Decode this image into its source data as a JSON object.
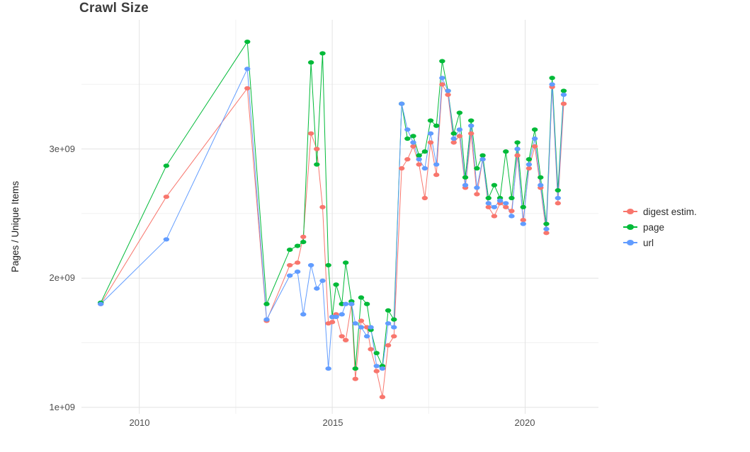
{
  "title": "Crawl Size",
  "y_axis_title": "Pages / Unique Items",
  "legend": {
    "position": "right",
    "items": [
      {
        "label": "digest estim.",
        "color": "#F8766D"
      },
      {
        "label": "page",
        "color": "#00BA38"
      },
      {
        "label": "url",
        "color": "#619CFF"
      }
    ]
  },
  "chart_data": {
    "type": "line",
    "title": "Crawl Size",
    "xlabel": "",
    "ylabel": "Pages / Unique Items",
    "y_unit_multiplier": 1000000000.0,
    "xlim": [
      2008.5,
      2021.9
    ],
    "ylim": [
      0.95,
      4.0
    ],
    "grid": true,
    "legend_position": "right",
    "x_ticks": [
      {
        "value": 2010,
        "label": "2010"
      },
      {
        "value": 2015,
        "label": "2015"
      },
      {
        "value": 2020,
        "label": "2020"
      }
    ],
    "y_ticks": [
      {
        "value": 1,
        "label": "1e+09"
      },
      {
        "value": 2,
        "label": "2e+09"
      },
      {
        "value": 3,
        "label": "3e+09"
      }
    ],
    "x_minor_gridlines": [
      2012.5,
      2017.5
    ],
    "y_minor_gridlines": [
      1.5,
      2.5,
      3.5
    ],
    "x": [
      2009.0,
      2010.7,
      2012.8,
      2013.3,
      2013.9,
      2014.1,
      2014.25,
      2014.45,
      2014.6,
      2014.75,
      2014.9,
      2015.0,
      2015.1,
      2015.25,
      2015.35,
      2015.5,
      2015.6,
      2015.75,
      2015.9,
      2016.0,
      2016.15,
      2016.3,
      2016.45,
      2016.6,
      2016.8,
      2016.95,
      2017.1,
      2017.25,
      2017.4,
      2017.55,
      2017.7,
      2017.85,
      2018.0,
      2018.15,
      2018.3,
      2018.45,
      2018.6,
      2018.75,
      2018.9,
      2019.05,
      2019.2,
      2019.35,
      2019.5,
      2019.65,
      2019.8,
      2019.95,
      2020.1,
      2020.25,
      2020.4,
      2020.55,
      2020.7,
      2020.85,
      2021.0
    ],
    "series": [
      {
        "name": "digest estim.",
        "color": "#F8766D",
        "values": [
          1.8,
          2.63,
          3.47,
          1.67,
          2.1,
          2.12,
          2.32,
          3.12,
          3.0,
          2.55,
          1.65,
          1.66,
          1.72,
          1.55,
          1.52,
          1.8,
          1.22,
          1.67,
          1.62,
          1.45,
          1.28,
          1.08,
          1.48,
          1.55,
          2.85,
          2.92,
          3.02,
          2.88,
          2.62,
          3.05,
          2.8,
          3.5,
          3.42,
          3.05,
          3.1,
          2.7,
          3.12,
          2.65,
          2.92,
          2.55,
          2.48,
          2.58,
          2.55,
          2.52,
          2.95,
          2.45,
          2.85,
          3.02,
          2.7,
          2.35,
          3.48,
          2.58,
          3.35
        ]
      },
      {
        "name": "page",
        "color": "#00BA38",
        "values": [
          1.81,
          2.87,
          3.83,
          1.8,
          2.22,
          2.25,
          2.28,
          3.67,
          2.88,
          3.74,
          2.1,
          1.7,
          1.95,
          1.8,
          2.12,
          1.82,
          1.3,
          1.85,
          1.8,
          1.6,
          1.42,
          1.32,
          1.75,
          1.68,
          3.35,
          3.08,
          3.1,
          2.95,
          2.98,
          3.22,
          3.18,
          3.68,
          3.45,
          3.12,
          3.28,
          2.78,
          3.22,
          2.85,
          2.95,
          2.62,
          2.72,
          2.62,
          2.98,
          2.62,
          3.05,
          2.55,
          2.92,
          3.15,
          2.78,
          2.42,
          3.55,
          2.68,
          3.45
        ]
      },
      {
        "name": "url",
        "color": "#619CFF",
        "values": [
          1.8,
          2.3,
          3.62,
          1.68,
          2.02,
          2.05,
          1.72,
          2.1,
          1.92,
          1.98,
          1.3,
          1.7,
          1.7,
          1.72,
          1.8,
          1.8,
          1.65,
          1.62,
          1.55,
          1.62,
          1.32,
          1.3,
          1.65,
          1.62,
          3.35,
          3.15,
          3.05,
          2.92,
          2.85,
          3.12,
          2.88,
          3.55,
          3.45,
          3.08,
          3.15,
          2.72,
          3.18,
          2.7,
          2.92,
          2.58,
          2.55,
          2.6,
          2.58,
          2.48,
          3.0,
          2.42,
          2.88,
          3.08,
          2.72,
          2.38,
          3.5,
          2.62,
          3.42
        ]
      }
    ]
  }
}
